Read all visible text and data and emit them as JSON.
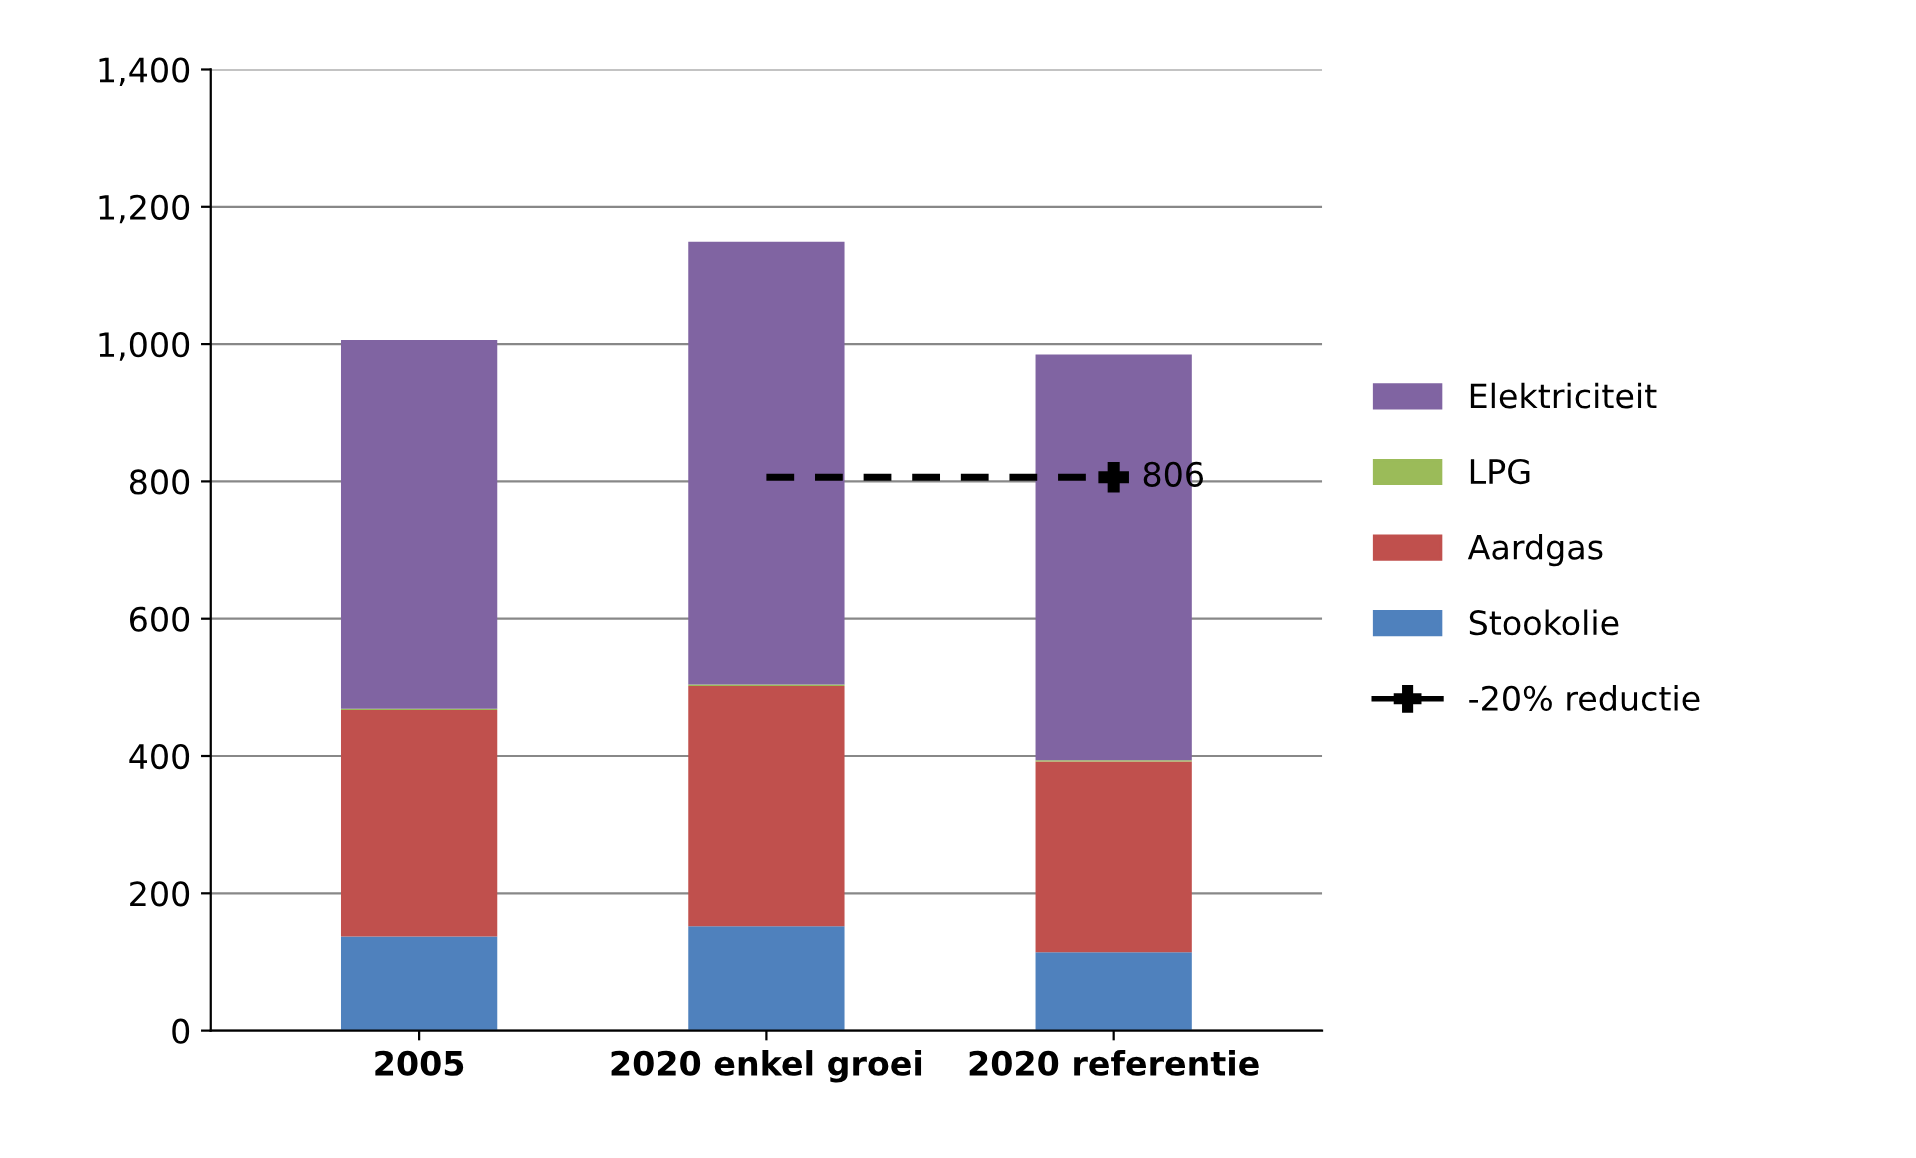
{
  "chart_data": {
    "type": "bar",
    "stacked": true,
    "categories": [
      "2005",
      "2020 enkel groei",
      "2020 referentie"
    ],
    "series": [
      {
        "name": "Stookolie",
        "color": "#4f81bd",
        "values": [
          137,
          152,
          114
        ]
      },
      {
        "name": "Aardgas",
        "color": "#c0504d",
        "values": [
          330,
          350,
          278
        ]
      },
      {
        "name": "LPG",
        "color": "#9bbb59",
        "values": [
          2,
          2,
          2
        ]
      },
      {
        "name": "Elektriciteit",
        "color": "#8064a2",
        "values": [
          537,
          645,
          591
        ]
      },
      {
        "name": "-20% reductie",
        "type": "line",
        "color": "#000000",
        "line_style": "dashed",
        "marker": "cross",
        "values": [
          null,
          806,
          806
        ],
        "value_labels": [
          null,
          null,
          "806"
        ]
      }
    ],
    "ylim": [
      0,
      1400
    ],
    "yticks": [
      {
        "value": 0,
        "label": "0"
      },
      {
        "value": 200,
        "label": "200"
      },
      {
        "value": 400,
        "label": "400"
      },
      {
        "value": 600,
        "label": "600"
      },
      {
        "value": 800,
        "label": "800"
      },
      {
        "value": 1000,
        "label": "1,000"
      },
      {
        "value": 1200,
        "label": "1,200"
      },
      {
        "value": 1400,
        "label": "1,400"
      }
    ],
    "grid": "y",
    "legend": "right"
  }
}
